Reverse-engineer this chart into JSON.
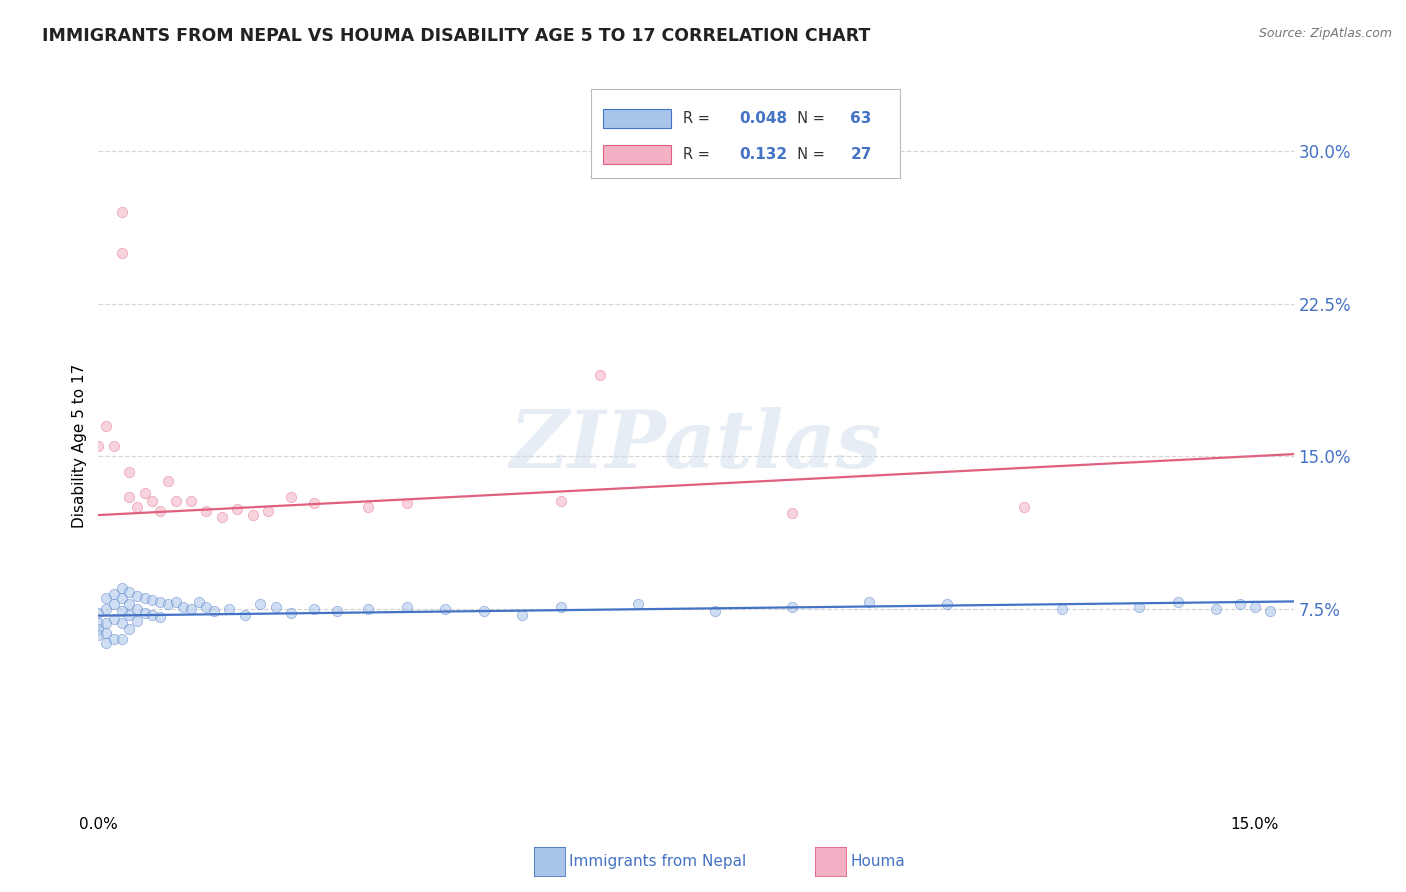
{
  "title": "IMMIGRANTS FROM NEPAL VS HOUMA DISABILITY AGE 5 TO 17 CORRELATION CHART",
  "source": "Source: ZipAtlas.com",
  "ylabel": "Disability Age 5 to 17",
  "yticks": [
    0.075,
    0.15,
    0.225,
    0.3
  ],
  "ytick_labels": [
    "7.5%",
    "15.0%",
    "22.5%",
    "30.0%"
  ],
  "xlim": [
    0.0,
    0.155
  ],
  "ylim": [
    -0.025,
    0.335
  ],
  "legend_R1": "0.048",
  "legend_N1": "63",
  "legend_R2": "0.132",
  "legend_N2": "27",
  "blue_color": "#a8c4e8",
  "blue_edge": "#4472c4",
  "pink_color": "#f4b0c4",
  "pink_edge": "#e06080",
  "blue_line_color": "#4472c4",
  "pink_line_color": "#e06080",
  "background_color": "#ffffff",
  "grid_color": "#cccccc",
  "watermark_color": "#c8d8ea",
  "scatter_alpha": 0.55,
  "scatter_size": 55,
  "blue_line_x": [
    0.0,
    0.155
  ],
  "blue_line_y": [
    0.0715,
    0.0785
  ],
  "pink_line_x": [
    0.0,
    0.155
  ],
  "pink_line_y": [
    0.121,
    0.151
  ],
  "blue_x": [
    0.0,
    0.0,
    0.0,
    0.0,
    0.001,
    0.001,
    0.001,
    0.001,
    0.001,
    0.002,
    0.002,
    0.002,
    0.002,
    0.003,
    0.003,
    0.003,
    0.003,
    0.003,
    0.004,
    0.004,
    0.004,
    0.004,
    0.005,
    0.005,
    0.005,
    0.006,
    0.006,
    0.007,
    0.007,
    0.008,
    0.008,
    0.009,
    0.01,
    0.011,
    0.012,
    0.013,
    0.014,
    0.015,
    0.017,
    0.019,
    0.021,
    0.023,
    0.025,
    0.028,
    0.031,
    0.035,
    0.04,
    0.045,
    0.05,
    0.055,
    0.06,
    0.07,
    0.08,
    0.09,
    0.1,
    0.11,
    0.125,
    0.135,
    0.14,
    0.145,
    0.148,
    0.15,
    0.152
  ],
  "blue_y": [
    0.073,
    0.068,
    0.065,
    0.062,
    0.08,
    0.075,
    0.068,
    0.063,
    0.058,
    0.082,
    0.077,
    0.07,
    0.06,
    0.085,
    0.08,
    0.074,
    0.068,
    0.06,
    0.083,
    0.077,
    0.072,
    0.065,
    0.081,
    0.075,
    0.069,
    0.08,
    0.073,
    0.079,
    0.072,
    0.078,
    0.071,
    0.077,
    0.078,
    0.076,
    0.075,
    0.078,
    0.076,
    0.074,
    0.075,
    0.072,
    0.077,
    0.076,
    0.073,
    0.075,
    0.074,
    0.075,
    0.076,
    0.075,
    0.074,
    0.072,
    0.076,
    0.077,
    0.074,
    0.076,
    0.078,
    0.077,
    0.075,
    0.076,
    0.078,
    0.075,
    0.077,
    0.076,
    0.074
  ],
  "pink_x": [
    0.0,
    0.001,
    0.002,
    0.003,
    0.003,
    0.004,
    0.004,
    0.005,
    0.006,
    0.007,
    0.008,
    0.009,
    0.01,
    0.012,
    0.014,
    0.016,
    0.018,
    0.02,
    0.022,
    0.025,
    0.028,
    0.035,
    0.04,
    0.06,
    0.065,
    0.09,
    0.12
  ],
  "pink_y": [
    0.155,
    0.165,
    0.155,
    0.27,
    0.25,
    0.13,
    0.142,
    0.125,
    0.132,
    0.128,
    0.123,
    0.138,
    0.128,
    0.128,
    0.123,
    0.12,
    0.124,
    0.121,
    0.123,
    0.13,
    0.127,
    0.125,
    0.127,
    0.128,
    0.19,
    0.122,
    0.125
  ]
}
